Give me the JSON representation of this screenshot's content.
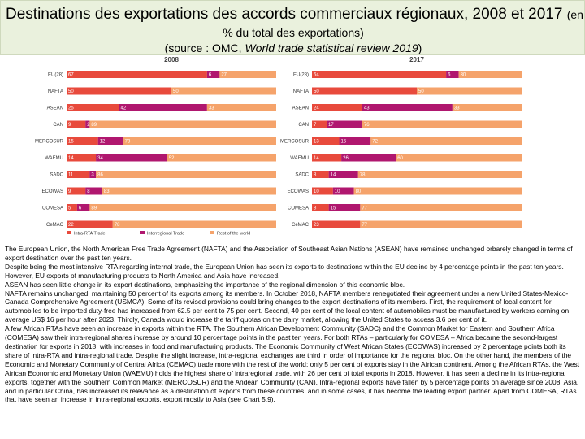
{
  "title": {
    "main": "Destinations des exportations des accords commerciaux régionaux, 2008 et 2017",
    "suffix": "(en",
    "line2": "% du total des exportations)",
    "source_prefix": "(source : OMC,",
    "source_italic": "World trade statistical review 2019",
    "source_suffix": ")"
  },
  "chart_data": {
    "type": "bar",
    "orientation": "horizontal-stacked-100",
    "colors": {
      "intra": "#e84a3c",
      "inter": "#b0176f",
      "rest": "#f5a36b",
      "track": "#fde5d4"
    },
    "legend": [
      "Intra-RTA Trade",
      "Interregional Trade",
      "Rest of the world"
    ],
    "categories": [
      "EU(28)",
      "NAFTA",
      "ASEAN",
      "CAN",
      "MERCOSUR",
      "WAEMU",
      "SADC",
      "ECOWAS",
      "COMESA",
      "CeMAC"
    ],
    "panels": [
      {
        "year": "2008",
        "series": [
          {
            "name": "Intra-RTA Trade",
            "values": [
              67,
              50,
              25,
              9,
              15,
              14,
              11,
              9,
              5,
              22
            ]
          },
          {
            "name": "Interregional Trade",
            "values": [
              6,
              0,
              42,
              2,
              12,
              34,
              3,
              8,
              6,
              0
            ]
          },
          {
            "name": "Rest of the world",
            "values": [
              27,
              50,
              33,
              89,
              73,
              52,
              86,
              83,
              89,
              78
            ]
          }
        ]
      },
      {
        "year": "2017",
        "series": [
          {
            "name": "Intra-RTA Trade",
            "values": [
              64,
              50,
              24,
              7,
              13,
              14,
              8,
              10,
              8,
              23
            ]
          },
          {
            "name": "Interregional Trade",
            "values": [
              6,
              0,
              43,
              17,
              15,
              26,
              14,
              10,
              15,
              0
            ]
          },
          {
            "name": "Rest of the world",
            "values": [
              30,
              50,
              33,
              76,
              72,
              60,
              78,
              80,
              77,
              77
            ]
          }
        ]
      }
    ]
  },
  "body": [
    "The European Union, the North American Free Trade Agreement (NAFTA) and the Association of Southeast Asian Nations (ASEAN) have remained unchanged orbarely changed in terms of export destination over the past ten years.",
    "Despite being the most intensive RTA regarding internal trade, the European Union has seen its exports to destinations within the EU decline by 4 percentage points in the past ten years. However, EU exports of manufacturing products to North America and Asia have increased.",
    "ASEAN has seen little change in its export destinations, emphasizing the importance of the regional dimension of this economic bloc.",
    "NAFTA remains unchanged, maintaining 50 percent of its exports among its members. In October 2018, NAFTA members renegotiated their agreement under a new United States-Mexico-Canada Comprehensive Agreement (USMCA). Some of its revised provisions could bring changes to the export destinations of its members. First, the requirement of local content for automobiles to be imported duty-free has increased from 62.5 per cent to 75 per cent. Second, 40 per cent of the local content of automobiles must be manufactured by workers earning on average US$ 16 per hour after 2023. Thirdly, Canada would increase the tariff quotas on the dairy market, allowing the United States to access 3.6 per cent of it.",
    "A few African RTAs have seen an increase in exports within the RTA. The Southern African Development Community (SADC) and the Common Market for Eastern and Southern Africa (COMESA) saw their intra-regional shares increase by around 10 percentage points in the past ten years. For both RTAs – particularly for COMESA – Africa became the second-largest destination for exports in 2018, with increases in food and manufacturing products. The Economic Community of West African States (ECOWAS) increased by 2 percentage points both its share of intra-RTA and intra-regional trade. Despite the slight increase, intra-regional exchanges are third in order of importance for the regional bloc. On the other hand, the members of the Economic and Monetary Community of Central Africa (CEMAC) trade more with the rest of the world: only 5 per cent of exports stay in the African continent. Among the African RTAs, the West African Economic and Monetary Union (WAEMU) holds the highest share of intraregional trade, with 26 per cent of total exports in 2018. However, it has seen a decline in its intra-regional exports, together with the Southern Common Market (MERCOSUR) and the Andean Community (CAN). Intra-regional exports have fallen by 5 percentage points on average since 2008. Asia, and in particular China, has increased its relevance as a destination of exports from these countries, and in some cases, it has become the leading export partner. Apart from COMESA, RTAs that have seen an increase in intra-regional exports, export mostly to Asia (see Chart 5.9)."
  ]
}
